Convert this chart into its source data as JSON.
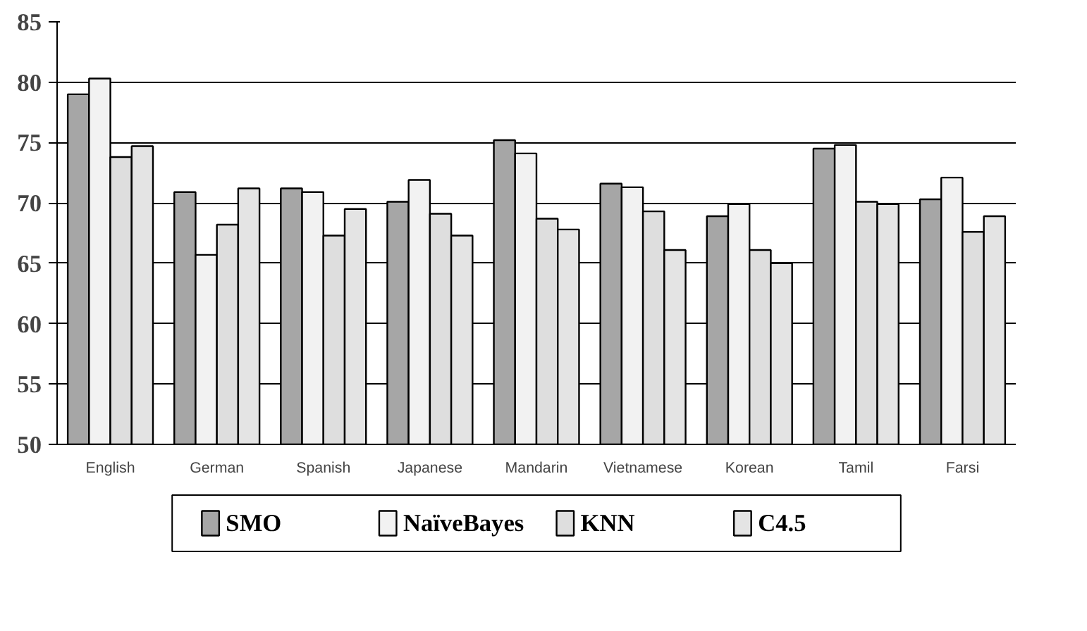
{
  "chart_data": {
    "type": "bar",
    "categories": [
      "English",
      "German",
      "Spanish",
      "Japanese",
      "Mandarin",
      "Vietnamese",
      "Korean",
      "Tamil",
      "Farsi"
    ],
    "series": [
      {
        "name": "SMO",
        "color": "#a6a6a6",
        "values": [
          79.0,
          70.9,
          71.2,
          70.1,
          75.2,
          71.6,
          68.9,
          74.5,
          70.3
        ]
      },
      {
        "name": "NaïveBayes",
        "color": "#f2f2f2",
        "values": [
          80.3,
          65.7,
          70.9,
          71.9,
          74.1,
          71.3,
          69.9,
          74.8,
          72.1
        ]
      },
      {
        "name": "KNN",
        "color": "#dedede",
        "values": [
          73.8,
          68.2,
          67.3,
          69.1,
          68.7,
          69.3,
          66.1,
          70.1,
          67.6
        ]
      },
      {
        "name": "C4.5",
        "color": "#e4e4e4",
        "values": [
          74.7,
          71.2,
          69.5,
          67.3,
          67.8,
          66.1,
          65.0,
          69.9,
          68.9
        ]
      }
    ],
    "ylim": [
      50,
      85
    ],
    "yticks": [
      50,
      55,
      60,
      65,
      70,
      75,
      80,
      85
    ],
    "grid": "y",
    "legend": "bottom"
  }
}
